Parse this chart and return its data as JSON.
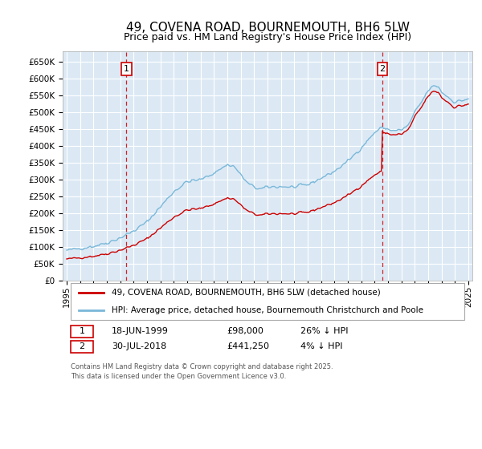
{
  "title": "49, COVENA ROAD, BOURNEMOUTH, BH6 5LW",
  "subtitle": "Price paid vs. HM Land Registry's House Price Index (HPI)",
  "ylabel_ticks": [
    "£0",
    "£50K",
    "£100K",
    "£150K",
    "£200K",
    "£250K",
    "£300K",
    "£350K",
    "£400K",
    "£450K",
    "£500K",
    "£550K",
    "£600K",
    "£650K"
  ],
  "ytick_values": [
    0,
    50000,
    100000,
    150000,
    200000,
    250000,
    300000,
    350000,
    400000,
    450000,
    500000,
    550000,
    600000,
    650000
  ],
  "ylim": [
    0,
    680000
  ],
  "xlim_start": 1994.7,
  "xlim_end": 2025.3,
  "xticks": [
    1995,
    1996,
    1997,
    1998,
    1999,
    2000,
    2001,
    2002,
    2003,
    2004,
    2005,
    2006,
    2007,
    2008,
    2009,
    2010,
    2011,
    2012,
    2013,
    2014,
    2015,
    2016,
    2017,
    2018,
    2019,
    2020,
    2021,
    2022,
    2023,
    2024,
    2025
  ],
  "bg_color": "#dce9f5",
  "grid_color": "#ffffff",
  "hpi_color": "#7ab8d9",
  "price_paid_color": "#cc0000",
  "dashed_line_color": "#cc0000",
  "annotation_box_color": "#cc0000",
  "sale1_year": 1999.46,
  "sale1_price": 98000,
  "sale2_year": 2018.58,
  "sale2_price": 441250,
  "legend_line1": "49, COVENA ROAD, BOURNEMOUTH, BH6 5LW (detached house)",
  "legend_line2": "HPI: Average price, detached house, Bournemouth Christchurch and Poole",
  "table_row1": [
    "1",
    "18-JUN-1999",
    "£98,000",
    "26% ↓ HPI"
  ],
  "table_row2": [
    "2",
    "30-JUL-2018",
    "£441,250",
    "4% ↓ HPI"
  ],
  "footer": "Contains HM Land Registry data © Crown copyright and database right 2025.\nThis data is licensed under the Open Government Licence v3.0.",
  "title_fontsize": 11,
  "subtitle_fontsize": 9,
  "tick_fontsize": 7.5
}
